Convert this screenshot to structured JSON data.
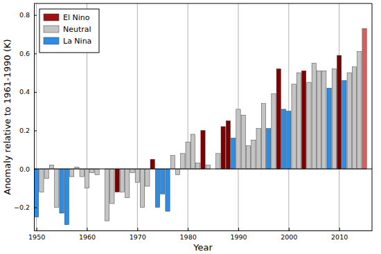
{
  "chart_data": {
    "type": "bar",
    "x": [
      1950,
      1951,
      1952,
      1953,
      1954,
      1955,
      1956,
      1957,
      1958,
      1959,
      1960,
      1961,
      1962,
      1963,
      1964,
      1965,
      1966,
      1967,
      1968,
      1969,
      1970,
      1971,
      1972,
      1973,
      1974,
      1975,
      1976,
      1977,
      1978,
      1979,
      1980,
      1981,
      1982,
      1983,
      1984,
      1985,
      1986,
      1987,
      1988,
      1989,
      1990,
      1991,
      1992,
      1993,
      1994,
      1995,
      1996,
      1997,
      1998,
      1999,
      2000,
      2001,
      2002,
      2003,
      2004,
      2005,
      2006,
      2007,
      2008,
      2009,
      2010,
      2011,
      2012,
      2013,
      2014,
      2015
    ],
    "series": [
      {
        "name": "El Nino",
        "color": "#a01212",
        "colors": [
          "#7d0000",
          "#7d0000",
          "#7d0000",
          "#7d0000",
          "#7d0000",
          "#7d0000",
          "#7d0000",
          "#7d0000",
          "#7d0000",
          "#7d0000",
          "#7d0000",
          "#7d0000",
          "#7d0000",
          "#7d0000",
          "#7d0000",
          "#7d0000",
          "#7d0000",
          "#7d0000",
          "#7d0000",
          "#7d0000",
          "#7d0000",
          "#7d0000",
          "#7d0000",
          "#7d0000",
          "#7d0000",
          "#7d0000",
          "#7d0000",
          "#7d0000",
          "#7d0000",
          "#7d0000",
          "#7d0000",
          "#7d0000",
          "#7d0000",
          "#7d0000",
          "#7d0000",
          "#7d0000",
          "#7d0000",
          "#7d0000",
          "#7d0000",
          "#7d0000",
          "#7d0000",
          "#7d0000",
          "#7d0000",
          "#7d0000",
          "#7d0000",
          "#7d0000",
          "#7d0000",
          "#7d0000",
          "#7d0000",
          "#7d0000",
          "#7d0000",
          "#7d0000",
          "#7d0000",
          "#7d0000",
          "#7d0000",
          "#7d0000",
          "#7d0000",
          "#7d0000",
          "#7d0000",
          "#7d0000",
          "#7d0000",
          "#7d0000",
          "#7d0000",
          "#7d0000",
          "#7d0000",
          "#d6605f"
        ],
        "values": [
          null,
          null,
          null,
          null,
          null,
          null,
          null,
          null,
          null,
          null,
          null,
          null,
          null,
          null,
          null,
          null,
          -0.12,
          null,
          null,
          null,
          null,
          null,
          null,
          0.05,
          null,
          null,
          null,
          null,
          null,
          null,
          null,
          null,
          null,
          0.2,
          null,
          null,
          null,
          0.22,
          0.25,
          null,
          null,
          null,
          null,
          null,
          null,
          null,
          null,
          null,
          0.52,
          null,
          null,
          null,
          null,
          0.51,
          null,
          null,
          null,
          null,
          null,
          null,
          0.59,
          null,
          null,
          null,
          null,
          0.73
        ]
      },
      {
        "name": "Neutral",
        "color": "#c4c4c4",
        "values": [
          null,
          -0.12,
          -0.05,
          0.02,
          -0.2,
          null,
          null,
          -0.04,
          0.01,
          -0.04,
          -0.1,
          -0.02,
          -0.03,
          0.0,
          -0.27,
          -0.18,
          null,
          -0.12,
          -0.15,
          -0.02,
          -0.07,
          -0.2,
          -0.09,
          null,
          null,
          null,
          null,
          0.07,
          -0.03,
          0.08,
          0.14,
          0.18,
          0.03,
          null,
          0.02,
          0.0,
          0.08,
          null,
          null,
          null,
          0.31,
          0.28,
          0.12,
          0.15,
          0.21,
          0.34,
          null,
          0.39,
          null,
          null,
          null,
          0.44,
          0.5,
          null,
          0.45,
          0.55,
          0.51,
          0.51,
          null,
          0.52,
          null,
          null,
          0.5,
          0.53,
          0.61,
          null
        ]
      },
      {
        "name": "La Nina",
        "color": "#2b8de6",
        "values": [
          -0.25,
          null,
          null,
          null,
          null,
          -0.23,
          -0.29,
          null,
          null,
          null,
          null,
          null,
          null,
          null,
          null,
          null,
          null,
          null,
          null,
          null,
          null,
          null,
          null,
          null,
          -0.2,
          -0.13,
          -0.22,
          null,
          null,
          null,
          null,
          null,
          null,
          null,
          null,
          null,
          null,
          null,
          null,
          0.16,
          null,
          null,
          null,
          null,
          null,
          null,
          0.21,
          null,
          null,
          0.31,
          0.3,
          null,
          null,
          null,
          null,
          null,
          null,
          null,
          0.42,
          null,
          null,
          0.46,
          null,
          null,
          null,
          null
        ]
      }
    ],
    "xlim": [
      1949.5,
      2016.5
    ],
    "ylim": [
      -0.32,
      0.86
    ],
    "xticks": [
      1950,
      1960,
      1970,
      1980,
      1990,
      2000,
      2010
    ],
    "yticks": [
      {
        "value": -0.2,
        "label": "−0.2"
      },
      {
        "value": 0.0,
        "label": "0.0"
      },
      {
        "value": 0.2,
        "label": "0.2"
      },
      {
        "value": 0.4,
        "label": "0.4"
      },
      {
        "value": 0.6,
        "label": "0.6"
      },
      {
        "value": 0.8,
        "label": "0.8"
      }
    ],
    "xlabel": "Year",
    "ylabel": "Anomaly relative to 1961-1990 (K)",
    "legend": "upper-left",
    "grid": true
  }
}
